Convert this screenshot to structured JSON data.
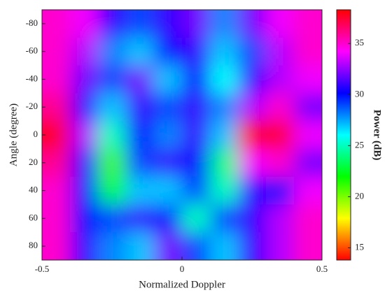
{
  "chart_data": {
    "type": "heatmap",
    "x_label": "Normalized Doppler",
    "y_label": "Angle (degree)",
    "colorbar_label": "Power (dB)",
    "x": [
      -0.45,
      -0.35,
      -0.25,
      -0.15,
      -0.05,
      0.05,
      0.15,
      0.25,
      0.35,
      0.45
    ],
    "y": [
      -80,
      -60,
      -40,
      -20,
      0,
      20,
      40,
      60,
      80
    ],
    "z": [
      [
        35,
        34,
        31,
        29,
        31,
        32,
        28,
        32,
        34,
        35
      ],
      [
        35,
        33,
        28,
        27,
        30,
        31,
        27,
        29,
        33,
        35
      ],
      [
        35,
        32,
        29,
        32,
        27,
        30,
        26,
        31,
        33,
        34
      ],
      [
        36,
        31,
        27,
        31,
        29,
        31,
        28,
        33,
        35,
        32
      ],
      [
        38,
        33,
        25,
        30,
        28,
        31,
        27,
        38,
        38,
        34
      ],
      [
        36,
        31,
        21,
        29,
        31,
        30,
        24,
        34,
        35,
        32
      ],
      [
        35,
        30,
        23,
        27,
        27,
        29,
        25,
        31,
        30,
        34
      ],
      [
        35,
        30,
        29,
        31,
        30,
        25,
        29,
        31,
        33,
        35
      ],
      [
        35,
        31,
        28,
        27,
        32,
        29,
        27,
        31,
        33,
        35
      ]
    ],
    "xlim": [
      -0.5,
      0.5
    ],
    "xticks": [
      -0.5,
      0,
      0.5
    ],
    "ylim": [
      -90,
      90
    ],
    "yticks": [
      -80,
      -60,
      -40,
      -20,
      0,
      20,
      40,
      60,
      80
    ],
    "y_reversed": true,
    "clim": [
      13.8,
      38.3
    ],
    "cticks": [
      15,
      20,
      25,
      30,
      35
    ],
    "colormap": [
      "#ff0000",
      "#ffff00",
      "#00ff00",
      "#00ffff",
      "#0000ff",
      "#ff00ff",
      "#ff0000"
    ]
  }
}
